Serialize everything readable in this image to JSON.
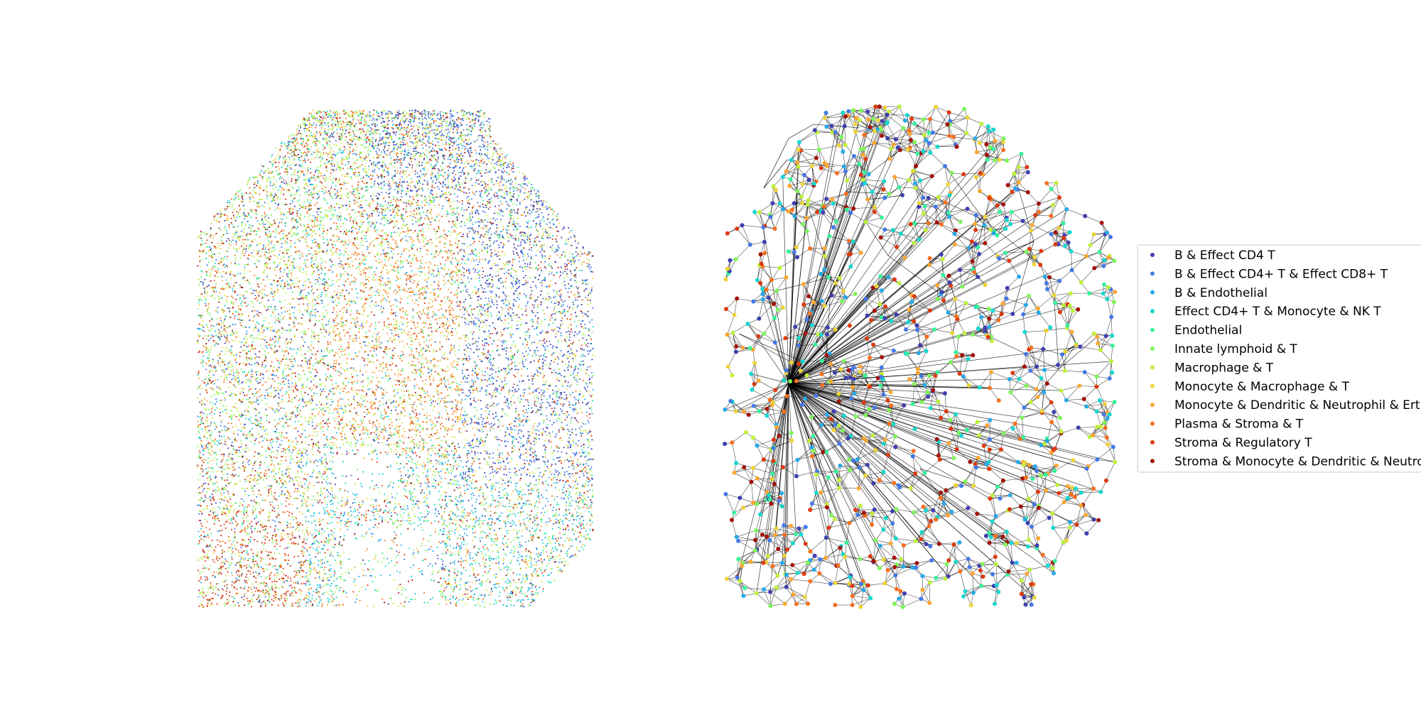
{
  "chart_data": [
    {
      "type": "scatter",
      "title": "",
      "xlabel": "",
      "ylabel": "",
      "axes_visible": false,
      "grid": false,
      "point_count_approx": 30000,
      "description_of_series_spread": "dense spatial scatter of cell spots colored by niche cluster"
    },
    {
      "type": "network",
      "title": "",
      "xlabel": "",
      "ylabel": "",
      "axes_visible": false,
      "grid": false,
      "node_count_approx": 1300,
      "edge_color": "#000000",
      "hubs_present": true
    }
  ],
  "legend": {
    "placement": "right",
    "entries": [
      {
        "label": "B & Effect CD4 T",
        "color": "#3f3fb0"
      },
      {
        "label": "B & Effect CD4+ T & Effect CD8+ T",
        "color": "#4479e6"
      },
      {
        "label": "B & Endothelial",
        "color": "#27a9e8"
      },
      {
        "label": "Effect CD4+ T & Monocyte & NK T",
        "color": "#17d7cf"
      },
      {
        "label": "Endothelial",
        "color": "#36f29a"
      },
      {
        "label": "Innate lymphoid & T",
        "color": "#7ef55a"
      },
      {
        "label": "Macrophage & T",
        "color": "#bff03d"
      },
      {
        "label": "Monocyte & Macrophage & T",
        "color": "#ecd33a"
      },
      {
        "label": "Monocyte & Dendritic & Neutrophil & Erth",
        "color": "#f9a734"
      },
      {
        "label": "Plasma & Stroma & T",
        "color": "#f5701f"
      },
      {
        "label": "Stroma & Regulatory T",
        "color": "#dc3a0f"
      },
      {
        "label": "Stroma & Monocyte & Dendritic & Neutrop",
        "color": "#a2120a"
      }
    ]
  }
}
